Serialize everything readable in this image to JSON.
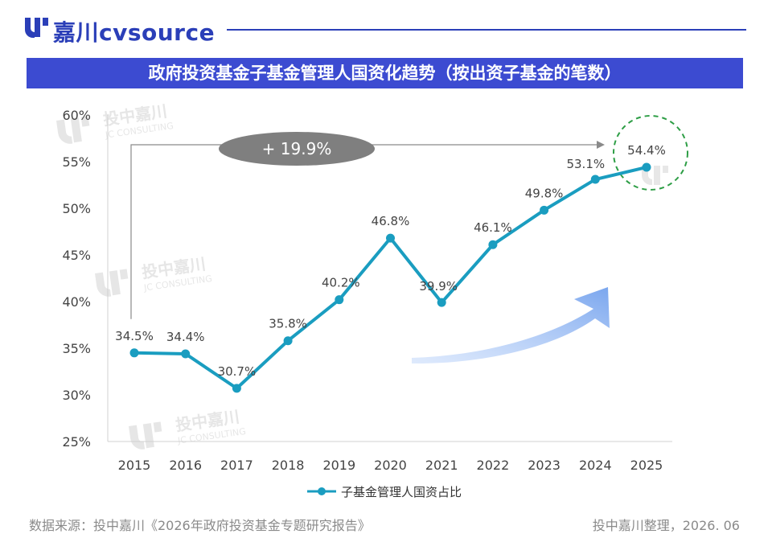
{
  "brand": {
    "logo_text": "嘉川cvsource",
    "logo_icon": "jc-logo-icon"
  },
  "title": "政府投资基金子基金管理人国资化趋势（按出资子基金的笔数）",
  "watermark": {
    "name": "投中嘉川",
    "sub": "JC CONSULTING"
  },
  "chart_data": {
    "type": "line",
    "categories": [
      "2015",
      "2016",
      "2017",
      "2018",
      "2019",
      "2020",
      "2021",
      "2022",
      "2023",
      "2024",
      "2025"
    ],
    "series": [
      {
        "name": "子基金管理人国资占比",
        "values": [
          34.5,
          34.4,
          30.7,
          35.8,
          40.2,
          46.8,
          39.9,
          46.1,
          49.8,
          53.1,
          54.4
        ],
        "labels": [
          "34.5%",
          "34.4%",
          "30.7%",
          "35.8%",
          "40.2%",
          "46.8%",
          "39.9%",
          "46.1%",
          "49.8%",
          "53.1%",
          "54.4%"
        ],
        "color": "#1a9dc0"
      }
    ],
    "ylim": [
      25,
      60
    ],
    "yticks": [
      "25%",
      "30%",
      "35%",
      "40%",
      "45%",
      "50%",
      "55%",
      "60%"
    ],
    "grid": false,
    "legend": "bottom",
    "annotations": {
      "growth": "+ 19.9%"
    }
  },
  "footer": {
    "source": "数据来源：投中嘉川《2026年政府投资基金专题研究报告》",
    "credit": "投中嘉川整理，2026. 06"
  },
  "colors": {
    "brand": "#2b3fb8",
    "title_bar": "#3c4bd1",
    "line": "#1a9dc0",
    "arrow": "#8fb4f0",
    "highlight_circle": "#2e9e46",
    "growth_badge": "#7f7f7f"
  }
}
